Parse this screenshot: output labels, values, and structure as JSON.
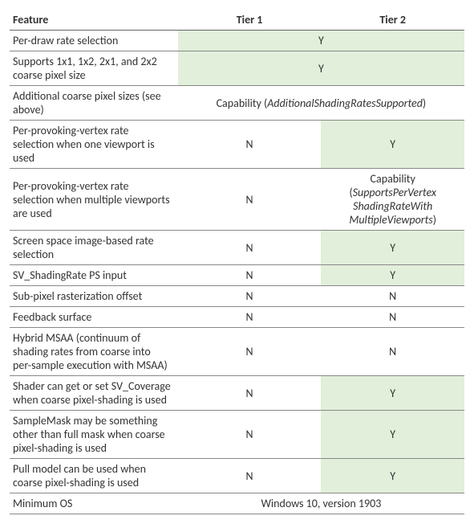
{
  "table": {
    "bg_yes": "#e2efda",
    "bg_no": "#ffffff",
    "border_color": "#888888",
    "header_border_color": "#666666",
    "font_family": "Calibri, 'Segoe UI', Arial, sans-serif",
    "font_size_pt": 11,
    "headers": {
      "feature": "Feature",
      "tier1": "Tier 1",
      "tier2": "Tier 2"
    },
    "rows": [
      {
        "feature": "Per-draw rate selection",
        "span": true,
        "merged_value": "Y",
        "merged_bg": "yes"
      },
      {
        "feature": "Supports 1x1, 1x2, 2x1, and 2x2 coarse pixel size",
        "span": true,
        "merged_value": "Y",
        "merged_bg": "yes"
      },
      {
        "feature": "Additional coarse pixel sizes (see above)",
        "span": true,
        "merged_prefix": "Capability (",
        "merged_italic": "AdditionalShadingRatesSupported",
        "merged_suffix": ")",
        "merged_bg": "no"
      },
      {
        "feature": "Per-provoking-vertex rate selection when one viewport is used",
        "tier1": "N",
        "tier1_bg": "no",
        "tier2": "Y",
        "tier2_bg": "yes"
      },
      {
        "feature": "Per-provoking-vertex rate selection when multiple viewports are used",
        "tier1": "N",
        "tier1_bg": "no",
        "tier2_prefix": "Capability (",
        "tier2_italic": "SupportsPerVertex ShadingRateWith MultipleViewports",
        "tier2_suffix": ")",
        "tier2_bg": "no"
      },
      {
        "feature": "Screen space image-based rate selection",
        "tier1": "N",
        "tier1_bg": "no",
        "tier2": "Y",
        "tier2_bg": "yes"
      },
      {
        "feature": "SV_ShadingRate PS input",
        "tier1": "N",
        "tier1_bg": "no",
        "tier2": "Y",
        "tier2_bg": "yes"
      },
      {
        "feature": "Sub-pixel rasterization offset",
        "tier1": "N",
        "tier1_bg": "no",
        "tier2": "N",
        "tier2_bg": "no"
      },
      {
        "feature": "Feedback surface",
        "tier1": "N",
        "tier1_bg": "no",
        "tier2": "N",
        "tier2_bg": "no"
      },
      {
        "feature": "Hybrid MSAA (continuum of shading rates from coarse into per-sample execution with MSAA)",
        "tier1": "N",
        "tier1_bg": "no",
        "tier2": "N",
        "tier2_bg": "no"
      },
      {
        "feature": "Shader can get or set SV_Coverage when coarse pixel-shading is used",
        "tier1": "N",
        "tier1_bg": "no",
        "tier2": "Y",
        "tier2_bg": "yes"
      },
      {
        "feature": "SampleMask may be something other than full mask when coarse pixel-shading is used",
        "tier1": "N",
        "tier1_bg": "no",
        "tier2": "Y",
        "tier2_bg": "yes"
      },
      {
        "feature": "Pull model can be used when coarse pixel-shading is used",
        "tier1": "N",
        "tier1_bg": "no",
        "tier2": "Y",
        "tier2_bg": "yes"
      },
      {
        "feature": "Minimum OS",
        "span": true,
        "merged_value": "Windows 10, version 1903",
        "merged_bg": "no"
      }
    ]
  }
}
